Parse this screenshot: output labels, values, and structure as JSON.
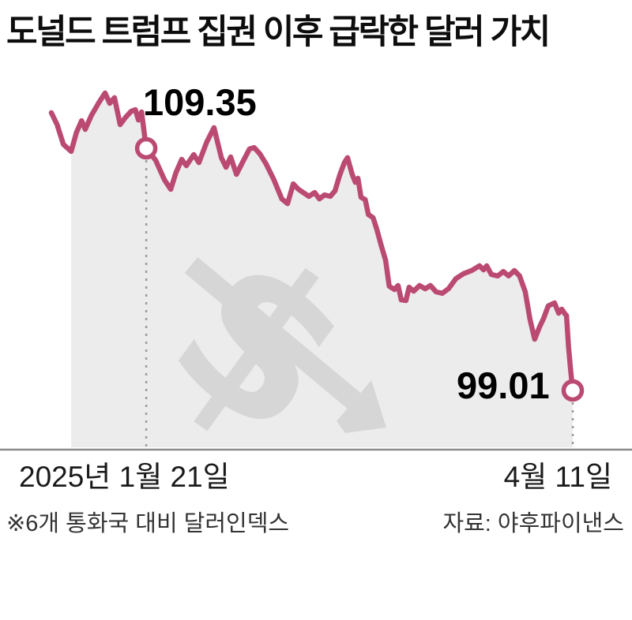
{
  "title": "도널드 트럼프 집권 이후 급락한 달러 가치",
  "footnote": "※6개 통화국 대비 달러인덱스",
  "source": "자료: 야후파이낸스",
  "chart_data": {
    "type": "line",
    "title": "도널드 트럼프 집권 이후 급락한 달러 가치",
    "ylabel": "달러인덱스 (6개 통화국 대비)",
    "ylim": [
      96.5,
      112.5
    ],
    "grid": false,
    "legend": "none",
    "x_axis": {
      "start_label": "2025년 1월 21일",
      "end_label": "4월 11일"
    },
    "annotations": [
      {
        "label": "109.35",
        "value": 109.35,
        "f": 0.182,
        "date": "2025년 1월 21일"
      },
      {
        "label": "99.01",
        "value": 99.01,
        "f": 1.0,
        "date": "4월 11일"
      }
    ],
    "watermark": {
      "symbol": "dollar-sign-down-arrow"
    },
    "colors": {
      "line": "#bb4a72",
      "area": "#ececec",
      "watermark": "#d6d6d6",
      "axis": "#8a8a8a",
      "dash": "#9b9b9b",
      "marker_fill": "#ffffff"
    },
    "fill_start_index": 3,
    "series": [
      {
        "name": "달러인덱스",
        "points": [
          [
            0.0,
            110.87
          ],
          [
            0.011,
            110.36
          ],
          [
            0.023,
            109.52
          ],
          [
            0.038,
            109.22
          ],
          [
            0.048,
            110.02
          ],
          [
            0.058,
            110.53
          ],
          [
            0.065,
            110.16
          ],
          [
            0.077,
            110.76
          ],
          [
            0.091,
            111.3
          ],
          [
            0.103,
            111.71
          ],
          [
            0.112,
            111.27
          ],
          [
            0.121,
            111.51
          ],
          [
            0.132,
            110.36
          ],
          [
            0.142,
            110.66
          ],
          [
            0.153,
            110.93
          ],
          [
            0.161,
            111.0
          ],
          [
            0.167,
            110.56
          ],
          [
            0.173,
            110.9
          ],
          [
            0.182,
            109.35
          ],
          [
            0.2,
            108.84
          ],
          [
            0.217,
            108.0
          ],
          [
            0.229,
            107.6
          ],
          [
            0.239,
            108.31
          ],
          [
            0.25,
            108.88
          ],
          [
            0.259,
            108.61
          ],
          [
            0.273,
            109.08
          ],
          [
            0.283,
            108.74
          ],
          [
            0.298,
            109.62
          ],
          [
            0.312,
            110.23
          ],
          [
            0.326,
            108.95
          ],
          [
            0.335,
            108.54
          ],
          [
            0.344,
            108.98
          ],
          [
            0.355,
            108.24
          ],
          [
            0.368,
            108.81
          ],
          [
            0.38,
            109.32
          ],
          [
            0.389,
            109.38
          ],
          [
            0.4,
            109.11
          ],
          [
            0.412,
            108.68
          ],
          [
            0.427,
            108.0
          ],
          [
            0.442,
            107.19
          ],
          [
            0.453,
            106.99
          ],
          [
            0.464,
            107.83
          ],
          [
            0.474,
            107.6
          ],
          [
            0.483,
            107.46
          ],
          [
            0.494,
            107.3
          ],
          [
            0.505,
            107.46
          ],
          [
            0.514,
            107.19
          ],
          [
            0.524,
            107.36
          ],
          [
            0.535,
            107.3
          ],
          [
            0.544,
            107.53
          ],
          [
            0.553,
            108.2
          ],
          [
            0.562,
            108.74
          ],
          [
            0.568,
            108.95
          ],
          [
            0.577,
            108.24
          ],
          [
            0.583,
            107.9
          ],
          [
            0.588,
            108.07
          ],
          [
            0.594,
            107.26
          ],
          [
            0.602,
            107.16
          ],
          [
            0.608,
            106.52
          ],
          [
            0.617,
            106.39
          ],
          [
            0.624,
            105.91
          ],
          [
            0.633,
            105.17
          ],
          [
            0.641,
            104.57
          ],
          [
            0.648,
            103.46
          ],
          [
            0.658,
            103.32
          ],
          [
            0.665,
            103.49
          ],
          [
            0.671,
            102.88
          ],
          [
            0.68,
            102.85
          ],
          [
            0.686,
            103.42
          ],
          [
            0.695,
            103.25
          ],
          [
            0.706,
            103.49
          ],
          [
            0.717,
            103.35
          ],
          [
            0.727,
            103.49
          ],
          [
            0.738,
            103.22
          ],
          [
            0.75,
            103.16
          ],
          [
            0.762,
            103.36
          ],
          [
            0.776,
            103.79
          ],
          [
            0.791,
            104.0
          ],
          [
            0.806,
            104.13
          ],
          [
            0.821,
            104.33
          ],
          [
            0.829,
            104.16
          ],
          [
            0.835,
            104.33
          ],
          [
            0.844,
            103.96
          ],
          [
            0.856,
            103.9
          ],
          [
            0.867,
            104.09
          ],
          [
            0.877,
            103.9
          ],
          [
            0.888,
            104.13
          ],
          [
            0.898,
            103.9
          ],
          [
            0.909,
            103.22
          ],
          [
            0.918,
            102.04
          ],
          [
            0.927,
            101.2
          ],
          [
            0.936,
            101.71
          ],
          [
            0.944,
            102.08
          ],
          [
            0.953,
            102.62
          ],
          [
            0.965,
            102.75
          ],
          [
            0.973,
            102.31
          ],
          [
            0.979,
            102.48
          ],
          [
            0.985,
            102.28
          ],
          [
            0.988,
            102.21
          ],
          [
            0.992,
            100.86
          ],
          [
            0.996,
            99.85
          ],
          [
            1.0,
            99.01
          ]
        ]
      }
    ]
  }
}
